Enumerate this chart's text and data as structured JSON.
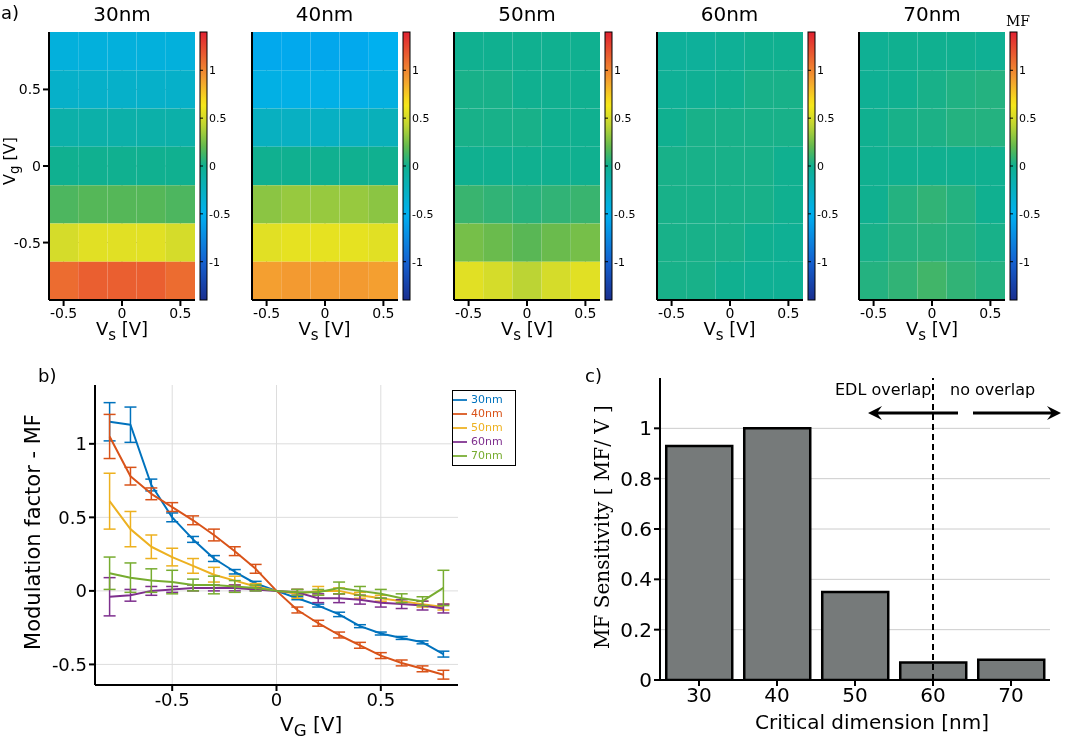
{
  "chart_data": [
    {
      "type": "heatmap",
      "title": "30nm",
      "annotations": [
        "a)"
      ],
      "xlabel": "V$_{s}$ [V]",
      "ylabel": "V$_{g}$ [V]",
      "categories": [
        "-0.5",
        null,
        "0",
        null,
        "0.5"
      ],
      "y_categories": [
        null,
        "0.5",
        null,
        "0",
        null,
        "-0.5",
        null
      ],
      "grid": true,
      "clim": [
        -1.4,
        1.4
      ],
      "cticks": [
        -1,
        -0.5,
        0,
        0.5,
        1
      ],
      "cells": [
        [
          -0.4,
          -0.4,
          -0.4,
          -0.4,
          -0.4
        ],
        [
          -0.3,
          -0.3,
          -0.3,
          -0.3,
          -0.3
        ],
        [
          -0.13,
          -0.13,
          -0.13,
          -0.13,
          -0.13
        ],
        [
          0,
          0,
          0,
          0,
          0
        ],
        [
          0.15,
          0.17,
          0.17,
          0.17,
          0.15
        ],
        [
          0.5,
          0.55,
          0.55,
          0.55,
          0.5
        ],
        [
          1.1,
          1.15,
          1.15,
          1.15,
          1.1
        ]
      ]
    },
    {
      "type": "heatmap",
      "title": "40nm",
      "xlabel": "V$_{s}$ [V]",
      "categories": [
        "-0.5",
        null,
        "0",
        null,
        "0.5"
      ],
      "y_categories": [
        null,
        "0.5",
        null,
        "0",
        null,
        "-0.5",
        null
      ],
      "tick_labels": "x",
      "grid": true,
      "clim": [
        -1.4,
        1.4
      ],
      "cticks": [
        -1,
        -0.5,
        0,
        0.5,
        1
      ],
      "cells": [
        [
          -0.55,
          -0.55,
          -0.56,
          -0.55,
          -0.5
        ],
        [
          -0.44,
          -0.45,
          -0.45,
          -0.45,
          -0.42
        ],
        [
          -0.25,
          -0.26,
          -0.27,
          -0.25,
          -0.22
        ],
        [
          0,
          0,
          0,
          0,
          0
        ],
        [
          0.3,
          0.33,
          0.33,
          0.33,
          0.3
        ],
        [
          0.55,
          0.57,
          0.57,
          0.57,
          0.55
        ],
        [
          0.9,
          0.92,
          0.92,
          0.92,
          0.9
        ]
      ]
    },
    {
      "type": "heatmap",
      "title": "50nm",
      "xlabel": "V$_{s}$ [V]",
      "categories": [
        "-0.5",
        null,
        "0",
        null,
        "0.5"
      ],
      "y_categories": [
        null,
        "0.5",
        null,
        "0",
        null,
        "-0.5",
        null
      ],
      "tick_labels": "x",
      "grid": true,
      "clim": [
        -1.4,
        1.4
      ],
      "cticks": [
        -1,
        -0.5,
        0,
        0.5,
        1
      ],
      "cells": [
        [
          0,
          0,
          0,
          0,
          0
        ],
        [
          0.02,
          0.02,
          0,
          0,
          0
        ],
        [
          0.02,
          0.02,
          0.02,
          0,
          0
        ],
        [
          0,
          0,
          0,
          0,
          0
        ],
        [
          0.1,
          0.08,
          0.06,
          0.08,
          0.1
        ],
        [
          0.25,
          0.22,
          0.18,
          0.22,
          0.25
        ],
        [
          0.55,
          0.5,
          0.42,
          0.5,
          0.55
        ]
      ]
    },
    {
      "type": "heatmap",
      "title": "60nm",
      "xlabel": "V$_{s}$ [V]",
      "categories": [
        "-0.5",
        null,
        "0",
        null,
        "0.5"
      ],
      "y_categories": [
        null,
        "0.5",
        null,
        "0",
        null,
        "-0.5",
        null
      ],
      "tick_labels": "x",
      "grid": true,
      "clim": [
        -1.4,
        1.4
      ],
      "cticks": [
        -1,
        -0.5,
        0,
        0.5,
        1
      ],
      "cells": [
        [
          -0.05,
          -0.05,
          -0.03,
          0,
          0
        ],
        [
          -0.03,
          -0.02,
          0,
          0.02,
          0.02
        ],
        [
          0,
          0.02,
          0.02,
          0.02,
          0.02
        ],
        [
          0.02,
          0.02,
          0.02,
          0.02,
          0
        ],
        [
          0.02,
          0.02,
          0.02,
          0.02,
          0
        ],
        [
          0.02,
          0.02,
          0.02,
          0,
          -0.02
        ],
        [
          0.02,
          0.02,
          0,
          -0.02,
          -0.02
        ]
      ]
    },
    {
      "type": "heatmap",
      "title": "70nm",
      "xlabel": "V$_{s}$ [V]",
      "clabel": "MF",
      "categories": [
        "-0.5",
        null,
        "0",
        null,
        "0.5"
      ],
      "y_categories": [
        null,
        "0.5",
        null,
        "0",
        null,
        "-0.5",
        null
      ],
      "tick_labels": "x",
      "grid": true,
      "clim": [
        -1.4,
        1.4
      ],
      "cticks": [
        -1,
        -0.5,
        0,
        0.5,
        1
      ],
      "cells": [
        [
          -0.02,
          0,
          0,
          0,
          -0.02
        ],
        [
          -0.02,
          0,
          0.02,
          0.04,
          0.05
        ],
        [
          0,
          0.02,
          0.03,
          0.05,
          0.05
        ],
        [
          0,
          0,
          0,
          0,
          0
        ],
        [
          0,
          0.05,
          0.08,
          0.05,
          0
        ],
        [
          0.02,
          0.05,
          0.06,
          0.05,
          0.02
        ],
        [
          0.05,
          0.08,
          0.12,
          0.08,
          0.05
        ]
      ]
    },
    {
      "type": "line",
      "annotations": [
        "b)"
      ],
      "xlabel": "V$_{G}$ [V]",
      "ylabel": "Modulation factor - MF",
      "x": [
        -0.8,
        -0.7,
        -0.6,
        -0.5,
        -0.4,
        -0.3,
        -0.2,
        -0.1,
        0,
        0.1,
        0.2,
        0.3,
        0.4,
        0.5,
        0.6,
        0.7,
        0.8
      ],
      "xlim": [
        -0.87,
        0.87
      ],
      "xticks": [
        -0.5,
        0,
        0.5
      ],
      "ylim": [
        -0.64,
        1.4
      ],
      "yticks": [
        -0.5,
        0,
        0.5,
        1
      ],
      "grid": true,
      "legend": "top right",
      "series": [
        {
          "name": "30nm",
          "color": "#0072bd",
          "values": [
            1.15,
            1.13,
            0.72,
            0.5,
            0.35,
            0.22,
            0.13,
            0.05,
            0,
            -0.05,
            -0.1,
            -0.16,
            -0.24,
            -0.29,
            -0.32,
            -0.35,
            -0.43
          ],
          "errors": [
            0.13,
            0.12,
            0.04,
            0.03,
            0.02,
            0.02,
            0.015,
            0.015,
            0,
            0.01,
            0.01,
            0.015,
            0.01,
            0.01,
            0.01,
            0.01,
            0.02
          ]
        },
        {
          "name": "40nm",
          "color": "#d95319",
          "values": [
            1.05,
            0.78,
            0.66,
            0.57,
            0.48,
            0.38,
            0.27,
            0.15,
            0,
            -0.13,
            -0.22,
            -0.3,
            -0.37,
            -0.44,
            -0.49,
            -0.53,
            -0.57
          ],
          "errors": [
            0.15,
            0.06,
            0.04,
            0.03,
            0.03,
            0.04,
            0.03,
            0.03,
            0,
            0.02,
            0.02,
            0.02,
            0.02,
            0.02,
            0.02,
            0.02,
            0.03
          ]
        },
        {
          "name": "50nm",
          "color": "#edb120",
          "values": [
            0.61,
            0.42,
            0.3,
            0.23,
            0.17,
            0.11,
            0.07,
            0.03,
            0,
            -0.02,
            0,
            0,
            -0.03,
            -0.05,
            -0.07,
            -0.09,
            -0.11
          ],
          "errors": [
            0.19,
            0.12,
            0.08,
            0.06,
            0.05,
            0.05,
            0.03,
            0.02,
            0,
            0.03,
            0.03,
            0.02,
            0.02,
            0.02,
            null,
            0.02,
            0.02
          ]
        },
        {
          "name": "60nm",
          "color": "#7e2f8e",
          "values": [
            -0.04,
            -0.03,
            0,
            0.01,
            0.02,
            0.02,
            0.02,
            0.01,
            0,
            -0.01,
            -0.05,
            -0.05,
            -0.06,
            -0.08,
            -0.09,
            -0.1,
            -0.12
          ],
          "errors": [
            0.13,
            0.04,
            0.03,
            0.02,
            0.02,
            0.02,
            0.02,
            0.01,
            0,
            0.02,
            0.03,
            0.03,
            0.03,
            0.03,
            0.03,
            0.03,
            0.03
          ]
        },
        {
          "name": "70nm",
          "color": "#77ac30",
          "values": [
            0.12,
            0.09,
            0.07,
            0.06,
            0.04,
            0.04,
            0.03,
            0.02,
            0,
            -0.01,
            -0.01,
            0.02,
            0,
            -0.02,
            -0.05,
            -0.07,
            0.02
          ],
          "errors": [
            0.11,
            0.1,
            0.08,
            0.08,
            0.04,
            0.06,
            0.04,
            0.02,
            0,
            0.02,
            0.02,
            0.04,
            0.03,
            0.03,
            0.03,
            0.03,
            0.12
          ]
        }
      ]
    },
    {
      "type": "bar",
      "annotations": [
        "c)",
        "EDL overlap",
        "no overlap"
      ],
      "xlabel": "Critical dimension [nm]",
      "ylabel": "MF Sensitivity [ MF/ V ]",
      "categories": [
        "30",
        "40",
        "50",
        "60",
        "70"
      ],
      "values": [
        0.93,
        1.0,
        0.35,
        0.07,
        0.08
      ],
      "color": "#767a7a",
      "ylim": [
        0,
        1.2
      ],
      "yticks": [
        0,
        0.2,
        0.4,
        0.6,
        0.8,
        1
      ],
      "grid": "y",
      "ref_lines": [
        {
          "axis": "x",
          "value": "60",
          "color": "#000000",
          "line_style": "dashed"
        }
      ]
    }
  ]
}
